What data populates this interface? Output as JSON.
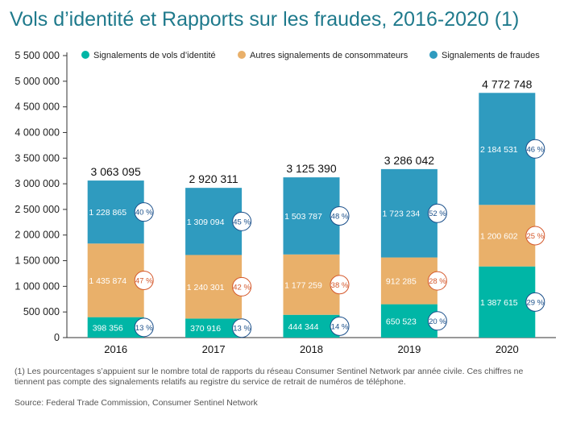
{
  "chart_data": {
    "type": "bar",
    "stacked": true,
    "title": "Vols d’identité et Rapports sur les fraudes, 2016-2020 (1)",
    "xlabel": "",
    "ylabel": "",
    "ylim": [
      0,
      5500000
    ],
    "y_ticks": [
      "0",
      "500 000",
      "1 000 000",
      "1 500 000",
      "2 000 000",
      "2 500 000",
      "3 000 000",
      "3 500 000",
      "4 000 000",
      "4 500 000",
      "5 000 000",
      "5 500 000"
    ],
    "categories": [
      "2016",
      "2017",
      "2018",
      "2019",
      "2020"
    ],
    "legend_position": "top",
    "series": [
      {
        "name": "Signalements de vols d’identité",
        "color": "#00b6a6",
        "pct_color": "#1a4f8a",
        "values": [
          398356,
          370916,
          444344,
          650523,
          1387615
        ],
        "value_labels": [
          "398 356",
          "370 916",
          "444 344",
          "650 523",
          "1 387 615"
        ],
        "pct_labels": [
          "13 %",
          "13 %",
          "14 %",
          "20 %",
          "29 %"
        ]
      },
      {
        "name": "Autres signalements de consommateurs",
        "color": "#e9b06a",
        "pct_color": "#d4572a",
        "values": [
          1435874,
          1240301,
          1177259,
          912285,
          1200602
        ],
        "value_labels": [
          "1 435 874",
          "1 240 301",
          "1 177 259",
          "912 285",
          "1 200 602"
        ],
        "pct_labels": [
          "47 %",
          "42 %",
          "38 %",
          "28 %",
          "25 %"
        ]
      },
      {
        "name": "Signalements de fraudes",
        "color": "#2f9bbf",
        "pct_color": "#1a4f8a",
        "values": [
          1228865,
          1309094,
          1503787,
          1723234,
          2184531
        ],
        "value_labels": [
          "1 228 865",
          "1 309 094",
          "1 503 787",
          "1 723 234",
          "2 184 531"
        ],
        "pct_labels": [
          "40 %",
          "45 %",
          "48 %",
          "52 %",
          "46 %"
        ]
      }
    ],
    "totals": [
      3063095,
      2920311,
      3125390,
      3286042,
      4772748
    ],
    "total_labels": [
      "3 063 095",
      "2 920 311",
      "3 125 390",
      "3 286 042",
      "4 772 748"
    ],
    "gridlines": false
  },
  "footnote": "(1) Les pourcentages s’appuient sur le nombre total de rapports du réseau Consumer Sentinel Network par année civile. Ces chiffres ne tiennent pas compte des signalements relatifs au registre du service de retrait de numéros de téléphone.",
  "source": "Source: Federal Trade Commission, Consumer Sentinel Network"
}
